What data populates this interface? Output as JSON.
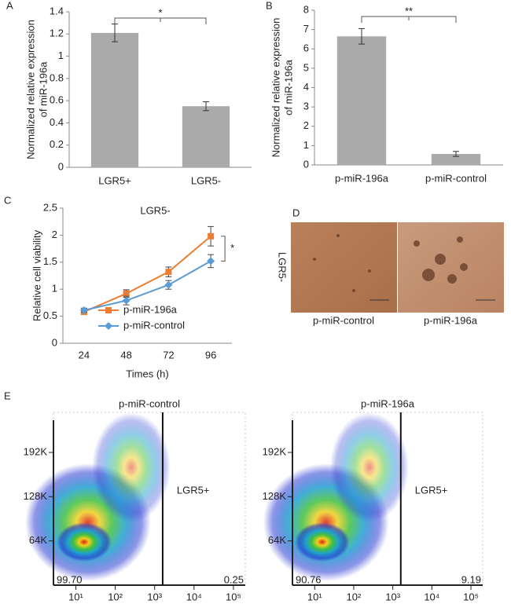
{
  "chart_data": [
    {
      "type": "bar",
      "panel_label": "A",
      "ylabel": [
        "Normalized relative expression",
        "of miR-196a"
      ],
      "categories": [
        "LGR5+",
        "LGR5-"
      ],
      "values": [
        1.21,
        0.55
      ],
      "errors": [
        0.08,
        0.04
      ],
      "color": "#aaaaaa",
      "ylim": [
        0,
        1.4
      ],
      "yticks": [
        0,
        0.2,
        0.4,
        0.6,
        0.8,
        1,
        1.2,
        1.4
      ],
      "significance": "*"
    },
    {
      "type": "bar",
      "panel_label": "B",
      "ylabel": [
        "Normalized relative expression",
        "of miR-196a"
      ],
      "categories": [
        "p-miR-196a",
        "p-miR-control"
      ],
      "values": [
        6.65,
        0.57
      ],
      "errors": [
        0.4,
        0.13
      ],
      "color": "#aaaaaa",
      "ylim": [
        0,
        8
      ],
      "yticks": [
        0,
        1,
        2,
        3,
        4,
        5,
        6,
        7,
        8
      ],
      "significance": "**"
    },
    {
      "type": "line",
      "panel_label": "C",
      "title": "LGR5-",
      "xlabel": "Times (h)",
      "ylabel": "Relative cell viability",
      "categories": [
        "24",
        "48",
        "72",
        "96"
      ],
      "series": [
        {
          "name": "p-miR-196a",
          "color": "#ed7d31",
          "marker": "square",
          "values": [
            0.58,
            0.92,
            1.32,
            1.98
          ],
          "errors": [
            0.05,
            0.07,
            0.09,
            0.18
          ]
        },
        {
          "name": "p-miR-control",
          "color": "#5b9bd5",
          "marker": "diamond",
          "values": [
            0.61,
            0.79,
            1.08,
            1.52
          ],
          "errors": [
            0.04,
            0.08,
            0.08,
            0.12
          ]
        }
      ],
      "ylim": [
        0,
        2.5
      ],
      "yticks": [
        0,
        0.5,
        1,
        1.5,
        2,
        2.5
      ],
      "legend": "lower right",
      "significance": "*"
    },
    {
      "type": "flow",
      "panel_label": "E",
      "title": "p-miR-control",
      "gate_label": "LGR5+",
      "gate": 1600,
      "quadrants": [
        99.7,
        0.25
      ],
      "value_labels": [
        "99.70",
        "0.25"
      ],
      "log_x": true,
      "xlim": [
        2.7,
        200000
      ],
      "xticks": [
        {
          "value": 10,
          "label": "10¹"
        },
        {
          "value": 100,
          "label": "10²"
        },
        {
          "value": 1000,
          "label": "10³"
        },
        {
          "value": 10000,
          "label": "10⁴"
        },
        {
          "value": 100000,
          "label": "10⁵"
        }
      ],
      "ylim": [
        0,
        250000
      ],
      "yticks": [
        {
          "value": 64000,
          "label": "64K"
        },
        {
          "value": 128000,
          "label": "128K"
        },
        {
          "value": 192000,
          "label": "192K"
        }
      ]
    },
    {
      "type": "flow",
      "title": "p-miR-196a",
      "gate_label": "LGR5+",
      "gate": 1600,
      "quadrants": [
        90.76,
        9.19
      ],
      "value_labels": [
        "90.76",
        "9.19"
      ],
      "log_x": true,
      "xlim": [
        2.7,
        200000
      ],
      "xticks": [
        {
          "value": 10,
          "label": "10¹"
        },
        {
          "value": 100,
          "label": "10²"
        },
        {
          "value": 1000,
          "label": "10³"
        },
        {
          "value": 10000,
          "label": "10⁴"
        },
        {
          "value": 100000,
          "label": "10⁵"
        }
      ],
      "ylim": [
        0,
        250000
      ],
      "yticks": [
        {
          "value": 64000,
          "label": "64K"
        },
        {
          "value": 128000,
          "label": "128K"
        },
        {
          "value": 192000,
          "label": "192K"
        }
      ]
    }
  ],
  "panel_d": {
    "label": "D",
    "row_label": "LGR5-",
    "captions": [
      "p-miR-control",
      "p-miR-196a"
    ]
  }
}
